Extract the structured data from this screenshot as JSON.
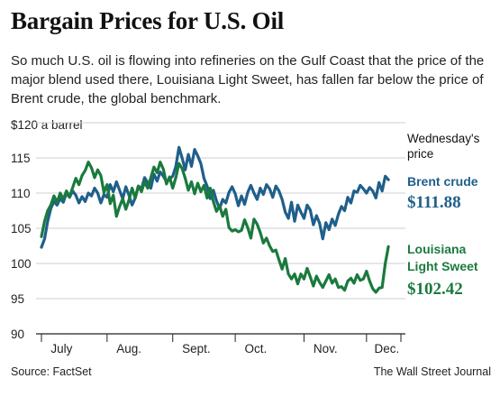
{
  "header": {
    "title": "Bargain Prices for U.S. Oil",
    "subtitle": "So much U.S. oil is flowing into refineries on the Gulf Coast that the price of the major blend used there, Louisiana Light Sweet, has fallen far below the price of Brent crude, the global benchmark."
  },
  "footer": {
    "source": "Source: FactSet",
    "credit": "The Wall Street Journal"
  },
  "colors": {
    "brent": "#1f5f8b",
    "lls": "#1a7a3e",
    "grid": "#cfcfcf",
    "axis": "#222222"
  },
  "chart_data": {
    "type": "line",
    "unit_label": "$120 a barrel",
    "ylim": [
      90,
      120
    ],
    "yticks": [
      90,
      95,
      100,
      105,
      110,
      115
    ],
    "xlim": [
      0,
      115
    ],
    "month_ticks": [
      0,
      21,
      42,
      62,
      84,
      104,
      115
    ],
    "month_labels": [
      {
        "label": "July",
        "x": 3
      },
      {
        "label": "Aug.",
        "x": 24
      },
      {
        "label": "Sept.",
        "x": 45
      },
      {
        "label": "Oct.",
        "x": 65
      },
      {
        "label": "Nov.",
        "x": 87
      },
      {
        "label": "Dec.",
        "x": 106.5
      }
    ],
    "annotation": {
      "line1": "Wednesday's",
      "line2": "price"
    },
    "series": [
      {
        "key": "brent",
        "name": "Brent crude",
        "last_label": "$111.88",
        "values": [
          102.3,
          103.5,
          106.0,
          107.8,
          108.8,
          108.3,
          109.2,
          108.7,
          110.0,
          109.4,
          110.3,
          109.7,
          108.6,
          109.5,
          108.8,
          110.0,
          109.6,
          110.7,
          110.0,
          108.6,
          109.8,
          109.4,
          111.2,
          110.2,
          111.6,
          110.4,
          109.2,
          110.9,
          109.7,
          108.3,
          109.3,
          111.0,
          110.6,
          112.2,
          111.5,
          110.7,
          112.7,
          111.7,
          113.0,
          112.4,
          111.6,
          112.0,
          112.4,
          113.8,
          116.5,
          115.0,
          113.3,
          115.5,
          113.8,
          116.2,
          115.3,
          114.2,
          112.1,
          111.0,
          109.2,
          110.4,
          108.9,
          107.8,
          109.1,
          108.6,
          110.1,
          110.9,
          109.9,
          108.2,
          109.6,
          108.4,
          110.1,
          111.1,
          110.0,
          109.1,
          110.7,
          109.8,
          111.2,
          110.6,
          109.4,
          111.0,
          110.3,
          109.1,
          107.3,
          106.4,
          108.7,
          106.0,
          108.3,
          107.3,
          106.4,
          108.3,
          107.6,
          105.5,
          106.8,
          105.7,
          103.5,
          105.8,
          104.8,
          106.3,
          105.4,
          107.0,
          108.1,
          107.5,
          109.4,
          108.6,
          110.3,
          110.1,
          111.1,
          110.6,
          110.0,
          110.8,
          110.3,
          109.3,
          111.5,
          110.3,
          112.4,
          111.9
        ]
      },
      {
        "key": "lls",
        "name": "Louisiana Light Sweet",
        "name_lines": [
          "Louisiana",
          "Light Sweet"
        ],
        "last_label": "$102.42",
        "values": [
          103.8,
          106.0,
          107.5,
          108.3,
          109.6,
          108.7,
          110.0,
          109.1,
          110.3,
          109.5,
          110.8,
          112.1,
          111.2,
          112.5,
          113.2,
          114.4,
          113.6,
          112.2,
          113.3,
          112.5,
          110.1,
          111.2,
          108.5,
          109.7,
          106.7,
          108.1,
          109.2,
          107.7,
          109.0,
          110.7,
          109.3,
          111.0,
          110.2,
          111.6,
          110.7,
          112.2,
          113.7,
          112.9,
          114.4,
          113.4,
          111.3,
          112.3,
          110.7,
          112.2,
          114.2,
          113.5,
          112.1,
          110.4,
          111.6,
          109.9,
          111.4,
          110.2,
          111.1,
          109.3,
          110.7,
          108.8,
          107.4,
          108.2,
          106.7,
          107.7,
          105.1,
          104.6,
          104.8,
          104.5,
          104.7,
          106.2,
          105.1,
          103.6,
          106.3,
          105.6,
          104.4,
          102.9,
          103.6,
          102.5,
          101.7,
          101.9,
          100.5,
          99.2,
          100.7,
          98.5,
          97.8,
          98.5,
          97.1,
          98.5,
          97.8,
          99.3,
          98.1,
          96.8,
          98.2,
          97.3,
          96.6,
          97.5,
          98.4,
          97.2,
          97.8,
          96.6,
          96.7,
          96.2,
          97.5,
          97.9,
          97.2,
          98.4,
          97.6,
          97.8,
          98.9,
          97.5,
          96.4,
          95.9,
          96.5,
          96.6,
          100.0,
          102.4
        ]
      }
    ]
  }
}
